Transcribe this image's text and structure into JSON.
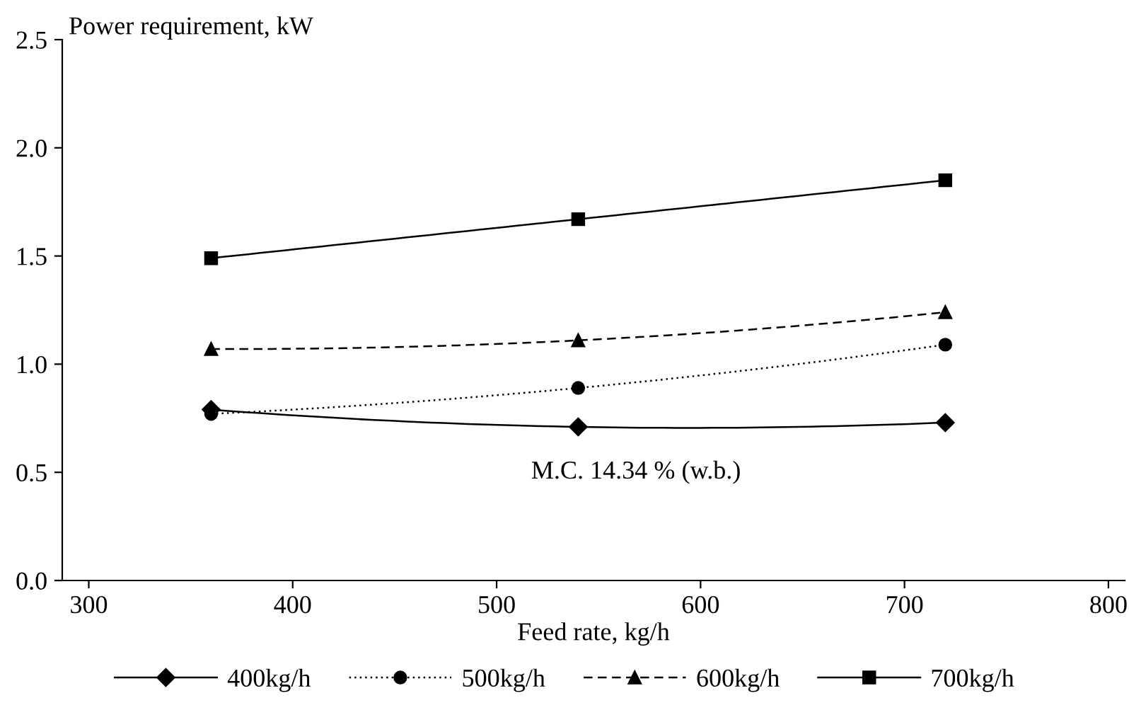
{
  "chart_data": {
    "type": "line",
    "xlabel": "Feed rate, kg/h",
    "ylabel": "Power requirement, kW",
    "x": [
      360,
      540,
      720
    ],
    "series": [
      {
        "name": "400kg/h",
        "color": "#000000",
        "values": [
          0.79,
          0.71,
          0.73
        ],
        "marker": "diamond",
        "line_style": "solid"
      },
      {
        "name": "500kg/h",
        "color": "#000000",
        "values": [
          0.77,
          0.89,
          1.09
        ],
        "marker": "circle",
        "line_style": "dotted"
      },
      {
        "name": "600kg/h",
        "color": "#000000",
        "values": [
          1.07,
          1.11,
          1.24
        ],
        "marker": "triangle",
        "line_style": "dashed"
      },
      {
        "name": "700kg/h",
        "color": "#000000",
        "values": [
          1.49,
          1.67,
          1.85
        ],
        "marker": "square",
        "line_style": "solid"
      }
    ],
    "xlim": [
      287,
      808
    ],
    "xticks": [
      300,
      400,
      500,
      600,
      700,
      800
    ],
    "ylim": [
      0,
      2.5
    ],
    "yticks": [
      {
        "value": 0,
        "label": "0.0"
      },
      {
        "value": 0.5,
        "label": "0.5"
      },
      {
        "value": 1,
        "label": "1.0"
      },
      {
        "value": 1.5,
        "label": "1.5"
      },
      {
        "value": 2,
        "label": "2.0"
      },
      {
        "value": 2.5,
        "label": "2.5"
      }
    ],
    "annotations": [
      "M.C. 14.34 % (w.b.)"
    ],
    "grid": false,
    "legend": "bottom"
  }
}
